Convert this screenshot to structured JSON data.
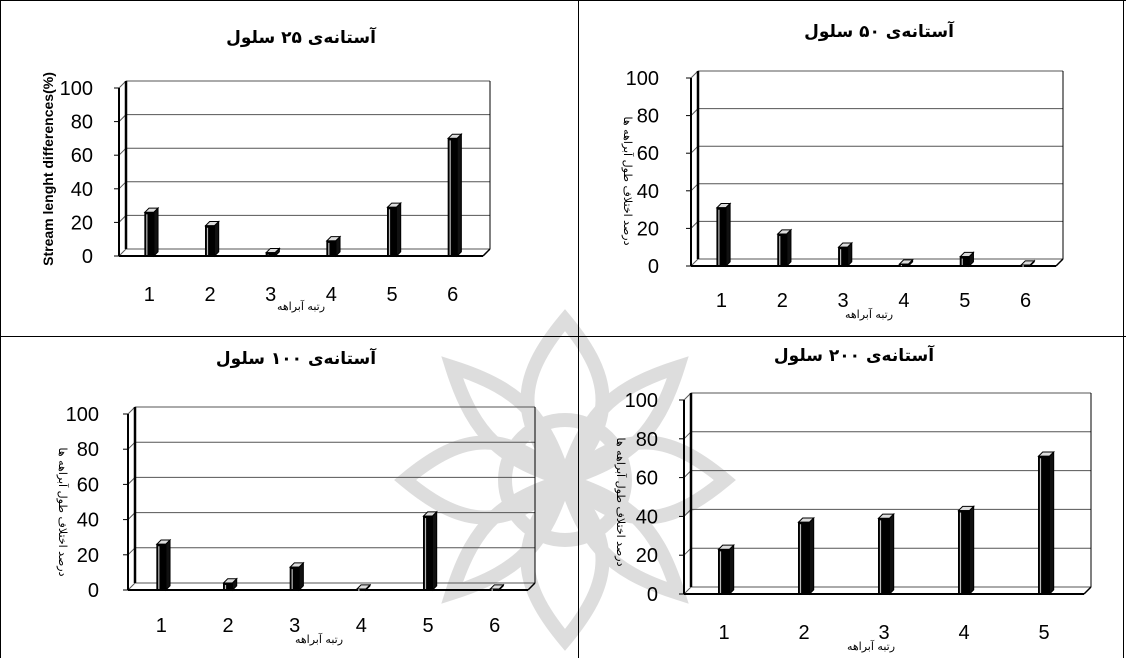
{
  "chart_data": [
    {
      "type": "bar",
      "title": "آستانه‌ی ۲۵ سلول",
      "xlabel": "رتبه آبراهه",
      "ylabel": "Stream lenght differences(%)",
      "categories": [
        "1",
        "2",
        "3",
        "4",
        "5",
        "6"
      ],
      "values": [
        26,
        18,
        2,
        9,
        29,
        70
      ],
      "ylim": [
        0,
        100
      ],
      "yticks": [
        "0",
        "20",
        "40",
        "60",
        "80",
        "100"
      ],
      "grid": true
    },
    {
      "type": "bar",
      "title": "آستانه‌ی ۵۰ سلول",
      "xlabel": "رتبه آبراهه",
      "ylabel": "درصد اختلاف طول آبراهه ها",
      "categories": [
        "1",
        "2",
        "3",
        "4",
        "5",
        "6"
      ],
      "values": [
        31,
        17,
        10,
        1,
        5,
        0.5
      ],
      "ylim": [
        0,
        100
      ],
      "yticks": [
        "0",
        "20",
        "40",
        "60",
        "80",
        "100"
      ],
      "grid": true
    },
    {
      "type": "bar",
      "title": "آستانه‌ی ۱۰۰ سلول",
      "xlabel": "رتبه آبراهه",
      "ylabel": "درصد اختلاف طول آبراهه ها",
      "categories": [
        "1",
        "2",
        "3",
        "4",
        "5",
        "6"
      ],
      "values": [
        26,
        4,
        13,
        0.5,
        42,
        0.5
      ],
      "ylim": [
        0,
        100
      ],
      "yticks": [
        "0",
        "20",
        "40",
        "60",
        "80",
        "100"
      ],
      "grid": true
    },
    {
      "type": "bar",
      "title": "آستانه‌ی ۲۰۰ سلول",
      "xlabel": "رتبه آبراهه",
      "ylabel": "درصد اختلاف طول آبراهه ها",
      "categories": [
        "1",
        "2",
        "3",
        "4",
        "5"
      ],
      "values": [
        23,
        37,
        39,
        43,
        71
      ],
      "ylim": [
        0,
        100
      ],
      "yticks": [
        "0",
        "20",
        "40",
        "60",
        "80",
        "100"
      ],
      "grid": true
    }
  ]
}
